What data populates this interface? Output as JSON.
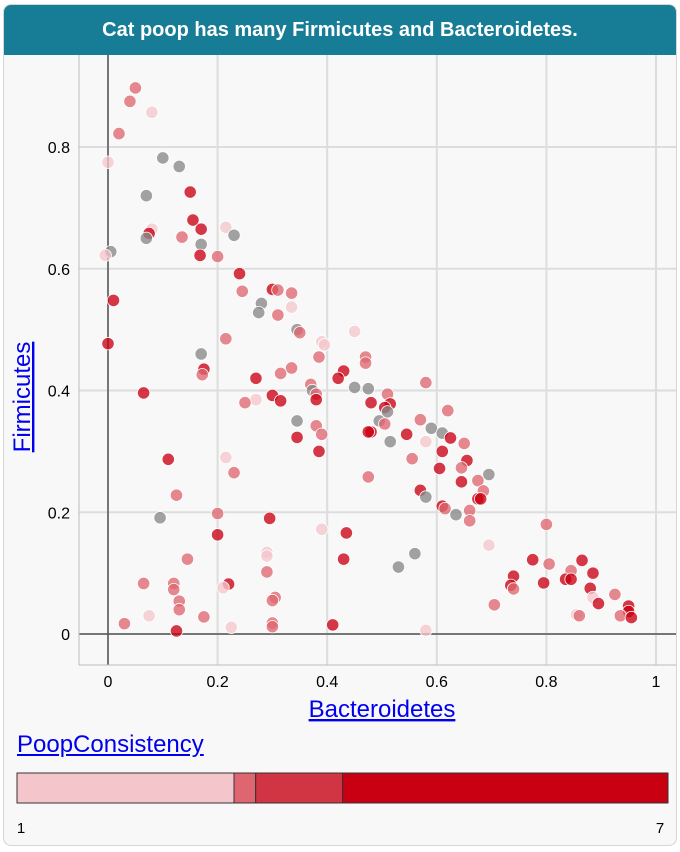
{
  "chart_data": {
    "type": "scatter",
    "title": "Cat poop has many Firmicutes and Bacteroidetes.",
    "xlabel": "Bacteroidetes",
    "ylabel": "Firmicutes",
    "xlim": [
      -0.05,
      1.03
    ],
    "ylim": [
      -0.045,
      0.955
    ],
    "xticks": [
      "0",
      "0.2",
      "0.4",
      "0.6",
      "0.8",
      "1"
    ],
    "xtick_values": [
      0,
      0.2,
      0.4,
      0.6,
      0.8,
      1.0
    ],
    "yticks": [
      "0",
      "0.2",
      "0.4",
      "0.6",
      "0.8"
    ],
    "ytick_values": [
      0,
      0.2,
      0.4,
      0.6,
      0.8
    ],
    "grid": true,
    "color_legend": {
      "title": "PoopConsistency",
      "min_label": "1",
      "max_label": "7",
      "min": 1,
      "max": 7,
      "bins": [
        {
          "from": 1,
          "to": 3,
          "color": "#f4c6cc"
        },
        {
          "from": 3,
          "to": 3.2,
          "color": "#de6670"
        },
        {
          "from": 3.2,
          "to": 4,
          "color": "#d13543"
        },
        {
          "from": 4,
          "to": 7,
          "color": "#c90012"
        }
      ]
    },
    "categories_note_missing": "#888888",
    "points": [
      {
        "x": 0.05,
        "y": 0.897,
        "c": 3.1
      },
      {
        "x": 0.04,
        "y": 0.875,
        "c": 3.1
      },
      {
        "x": 0.08,
        "y": 0.857,
        "c": 1.5
      },
      {
        "x": 0.02,
        "y": 0.822,
        "c": 3.1
      },
      {
        "x": 0.0,
        "y": 0.775,
        "c": 1.5
      },
      {
        "x": 0.1,
        "y": 0.782,
        "c": null
      },
      {
        "x": 0.13,
        "y": 0.768,
        "c": null
      },
      {
        "x": 0.15,
        "y": 0.726,
        "c": 5
      },
      {
        "x": 0.07,
        "y": 0.72,
        "c": null
      },
      {
        "x": 0.155,
        "y": 0.68,
        "c": 5
      },
      {
        "x": 0.08,
        "y": 0.665,
        "c": 1.5
      },
      {
        "x": 0.075,
        "y": 0.658,
        "c": 5
      },
      {
        "x": 0.07,
        "y": 0.65,
        "c": null
      },
      {
        "x": 0.135,
        "y": 0.652,
        "c": 3.1
      },
      {
        "x": 0.17,
        "y": 0.665,
        "c": 5
      },
      {
        "x": 0.215,
        "y": 0.668,
        "c": 1.5
      },
      {
        "x": 0.23,
        "y": 0.655,
        "c": null
      },
      {
        "x": 0.17,
        "y": 0.64,
        "c": null
      },
      {
        "x": 0.005,
        "y": 0.628,
        "c": null
      },
      {
        "x": -0.005,
        "y": 0.622,
        "c": 1.5
      },
      {
        "x": 0.168,
        "y": 0.622,
        "c": 5
      },
      {
        "x": 0.2,
        "y": 0.62,
        "c": 3.1
      },
      {
        "x": 0.24,
        "y": 0.592,
        "c": 5
      },
      {
        "x": 0.245,
        "y": 0.563,
        "c": 3.1
      },
      {
        "x": 0.3,
        "y": 0.566,
        "c": 5
      },
      {
        "x": 0.31,
        "y": 0.565,
        "c": 3.1
      },
      {
        "x": 0.335,
        "y": 0.56,
        "c": 3.1
      },
      {
        "x": 0.28,
        "y": 0.543,
        "c": null
      },
      {
        "x": 0.335,
        "y": 0.537,
        "c": 1.5
      },
      {
        "x": 0.275,
        "y": 0.528,
        "c": null
      },
      {
        "x": 0.31,
        "y": 0.524,
        "c": 3.1
      },
      {
        "x": 0.01,
        "y": 0.548,
        "c": 5
      },
      {
        "x": 0.345,
        "y": 0.5,
        "c": null
      },
      {
        "x": 0.35,
        "y": 0.495,
        "c": 3.1
      },
      {
        "x": 0.45,
        "y": 0.497,
        "c": 1.5
      },
      {
        "x": 0.215,
        "y": 0.485,
        "c": 3.1
      },
      {
        "x": 0.39,
        "y": 0.48,
        "c": 1.5
      },
      {
        "x": 0.395,
        "y": 0.475,
        "c": 1.5
      },
      {
        "x": 0.0,
        "y": 0.477,
        "c": 5
      },
      {
        "x": 0.17,
        "y": 0.46,
        "c": null
      },
      {
        "x": 0.385,
        "y": 0.455,
        "c": 3.1
      },
      {
        "x": 0.47,
        "y": 0.455,
        "c": 3.1
      },
      {
        "x": 0.47,
        "y": 0.445,
        "c": 3.1
      },
      {
        "x": 0.175,
        "y": 0.435,
        "c": 5
      },
      {
        "x": 0.335,
        "y": 0.437,
        "c": 3.1
      },
      {
        "x": 0.43,
        "y": 0.432,
        "c": 5
      },
      {
        "x": 0.315,
        "y": 0.428,
        "c": 3.1
      },
      {
        "x": 0.172,
        "y": 0.426,
        "c": 3.1
      },
      {
        "x": 0.27,
        "y": 0.42,
        "c": 5
      },
      {
        "x": 0.42,
        "y": 0.42,
        "c": 5
      },
      {
        "x": 0.58,
        "y": 0.413,
        "c": 3.1
      },
      {
        "x": 0.37,
        "y": 0.41,
        "c": 3.1
      },
      {
        "x": 0.45,
        "y": 0.405,
        "c": null
      },
      {
        "x": 0.475,
        "y": 0.403,
        "c": null
      },
      {
        "x": 0.065,
        "y": 0.396,
        "c": 5
      },
      {
        "x": 0.373,
        "y": 0.4,
        "c": null
      },
      {
        "x": 0.38,
        "y": 0.394,
        "c": 3.1
      },
      {
        "x": 0.3,
        "y": 0.392,
        "c": 5
      },
      {
        "x": 0.51,
        "y": 0.394,
        "c": 3.1
      },
      {
        "x": 0.38,
        "y": 0.385,
        "c": 5
      },
      {
        "x": 0.27,
        "y": 0.385,
        "c": 1.5
      },
      {
        "x": 0.315,
        "y": 0.383,
        "c": 5
      },
      {
        "x": 0.25,
        "y": 0.38,
        "c": 3.1
      },
      {
        "x": 0.48,
        "y": 0.38,
        "c": 5
      },
      {
        "x": 0.515,
        "y": 0.378,
        "c": 5
      },
      {
        "x": 0.505,
        "y": 0.372,
        "c": 5
      },
      {
        "x": 0.51,
        "y": 0.365,
        "c": null
      },
      {
        "x": 0.62,
        "y": 0.367,
        "c": 3.1
      },
      {
        "x": 0.57,
        "y": 0.352,
        "c": 3.1
      },
      {
        "x": 0.495,
        "y": 0.35,
        "c": null
      },
      {
        "x": 0.345,
        "y": 0.35,
        "c": null
      },
      {
        "x": 0.38,
        "y": 0.342,
        "c": 3.1
      },
      {
        "x": 0.59,
        "y": 0.338,
        "c": null
      },
      {
        "x": 0.505,
        "y": 0.345,
        "c": 3.1
      },
      {
        "x": 0.48,
        "y": 0.332,
        "c": 5
      },
      {
        "x": 0.475,
        "y": 0.332,
        "c": 5
      },
      {
        "x": 0.61,
        "y": 0.33,
        "c": null
      },
      {
        "x": 0.545,
        "y": 0.328,
        "c": 5
      },
      {
        "x": 0.39,
        "y": 0.328,
        "c": 3.1
      },
      {
        "x": 0.345,
        "y": 0.323,
        "c": 5
      },
      {
        "x": 0.625,
        "y": 0.322,
        "c": 5
      },
      {
        "x": 0.515,
        "y": 0.316,
        "c": null
      },
      {
        "x": 0.58,
        "y": 0.316,
        "c": 1.5
      },
      {
        "x": 0.65,
        "y": 0.313,
        "c": 3.1
      },
      {
        "x": 0.385,
        "y": 0.3,
        "c": 5
      },
      {
        "x": 0.61,
        "y": 0.3,
        "c": 5
      },
      {
        "x": 0.215,
        "y": 0.29,
        "c": 1.5
      },
      {
        "x": 0.11,
        "y": 0.287,
        "c": 5
      },
      {
        "x": 0.555,
        "y": 0.288,
        "c": 3.1
      },
      {
        "x": 0.655,
        "y": 0.285,
        "c": 5
      },
      {
        "x": 0.605,
        "y": 0.272,
        "c": 5
      },
      {
        "x": 0.645,
        "y": 0.273,
        "c": 3.1
      },
      {
        "x": 0.23,
        "y": 0.265,
        "c": 3.1
      },
      {
        "x": 0.695,
        "y": 0.262,
        "c": null
      },
      {
        "x": 0.475,
        "y": 0.258,
        "c": 3.1
      },
      {
        "x": 0.645,
        "y": 0.25,
        "c": 5
      },
      {
        "x": 0.675,
        "y": 0.252,
        "c": 3.1
      },
      {
        "x": 0.57,
        "y": 0.236,
        "c": 5
      },
      {
        "x": 0.685,
        "y": 0.235,
        "c": 3.1
      },
      {
        "x": 0.675,
        "y": 0.222,
        "c": 5
      },
      {
        "x": 0.68,
        "y": 0.222,
        "c": 5
      },
      {
        "x": 0.58,
        "y": 0.225,
        "c": null
      },
      {
        "x": 0.125,
        "y": 0.228,
        "c": 3.1
      },
      {
        "x": 0.61,
        "y": 0.21,
        "c": 5
      },
      {
        "x": 0.615,
        "y": 0.206,
        "c": 3.1
      },
      {
        "x": 0.66,
        "y": 0.203,
        "c": 3.1
      },
      {
        "x": 0.2,
        "y": 0.198,
        "c": 3.1
      },
      {
        "x": 0.635,
        "y": 0.196,
        "c": null
      },
      {
        "x": 0.66,
        "y": 0.186,
        "c": 3.1
      },
      {
        "x": 0.095,
        "y": 0.191,
        "c": null
      },
      {
        "x": 0.295,
        "y": 0.19,
        "c": 5
      },
      {
        "x": 0.8,
        "y": 0.18,
        "c": 3.1
      },
      {
        "x": 0.39,
        "y": 0.172,
        "c": 1.5
      },
      {
        "x": 0.435,
        "y": 0.166,
        "c": 5
      },
      {
        "x": 0.2,
        "y": 0.163,
        "c": 5
      },
      {
        "x": 0.695,
        "y": 0.146,
        "c": 1.5
      },
      {
        "x": 0.29,
        "y": 0.134,
        "c": 1.5
      },
      {
        "x": 0.29,
        "y": 0.128,
        "c": 1.5
      },
      {
        "x": 0.56,
        "y": 0.132,
        "c": null
      },
      {
        "x": 0.145,
        "y": 0.123,
        "c": 3.1
      },
      {
        "x": 0.43,
        "y": 0.123,
        "c": 5
      },
      {
        "x": 0.775,
        "y": 0.122,
        "c": 5
      },
      {
        "x": 0.865,
        "y": 0.121,
        "c": 5
      },
      {
        "x": 0.805,
        "y": 0.115,
        "c": 3.1
      },
      {
        "x": 0.53,
        "y": 0.11,
        "c": null
      },
      {
        "x": 0.845,
        "y": 0.104,
        "c": 3.1
      },
      {
        "x": 0.29,
        "y": 0.102,
        "c": 3.1
      },
      {
        "x": 0.885,
        "y": 0.1,
        "c": 5
      },
      {
        "x": 0.74,
        "y": 0.095,
        "c": 5
      },
      {
        "x": 0.835,
        "y": 0.09,
        "c": 5
      },
      {
        "x": 0.845,
        "y": 0.09,
        "c": 5
      },
      {
        "x": 0.065,
        "y": 0.083,
        "c": 3.1
      },
      {
        "x": 0.12,
        "y": 0.083,
        "c": 3.1
      },
      {
        "x": 0.22,
        "y": 0.082,
        "c": 5
      },
      {
        "x": 0.735,
        "y": 0.08,
        "c": 5
      },
      {
        "x": 0.795,
        "y": 0.084,
        "c": 5
      },
      {
        "x": 0.21,
        "y": 0.076,
        "c": 1.5
      },
      {
        "x": 0.74,
        "y": 0.074,
        "c": 3.1
      },
      {
        "x": 0.12,
        "y": 0.073,
        "c": 3.1
      },
      {
        "x": 0.88,
        "y": 0.075,
        "c": 5
      },
      {
        "x": 0.925,
        "y": 0.065,
        "c": 3.1
      },
      {
        "x": 0.305,
        "y": 0.06,
        "c": 3.1
      },
      {
        "x": 0.885,
        "y": 0.06,
        "c": 1.5
      },
      {
        "x": 0.13,
        "y": 0.054,
        "c": 3.1
      },
      {
        "x": 0.3,
        "y": 0.055,
        "c": 3.1
      },
      {
        "x": 0.895,
        "y": 0.05,
        "c": 5
      },
      {
        "x": 0.705,
        "y": 0.048,
        "c": 3.1
      },
      {
        "x": 0.13,
        "y": 0.04,
        "c": 3.1
      },
      {
        "x": 0.95,
        "y": 0.046,
        "c": 5
      },
      {
        "x": 0.855,
        "y": 0.032,
        "c": 1.5
      },
      {
        "x": 0.86,
        "y": 0.03,
        "c": 3.1
      },
      {
        "x": 0.95,
        "y": 0.037,
        "c": 5
      },
      {
        "x": 0.075,
        "y": 0.03,
        "c": 1.5
      },
      {
        "x": 0.175,
        "y": 0.028,
        "c": 3.1
      },
      {
        "x": 0.935,
        "y": 0.03,
        "c": 3.1
      },
      {
        "x": 0.955,
        "y": 0.027,
        "c": 5
      },
      {
        "x": 0.03,
        "y": 0.017,
        "c": 3.1
      },
      {
        "x": 0.3,
        "y": 0.018,
        "c": 3.1
      },
      {
        "x": 0.41,
        "y": 0.015,
        "c": 5
      },
      {
        "x": 0.3,
        "y": 0.012,
        "c": 3.1
      },
      {
        "x": 0.225,
        "y": 0.011,
        "c": 1.5
      },
      {
        "x": 0.125,
        "y": 0.005,
        "c": 5
      },
      {
        "x": 0.58,
        "y": 0.006,
        "c": 1.5
      }
    ]
  }
}
